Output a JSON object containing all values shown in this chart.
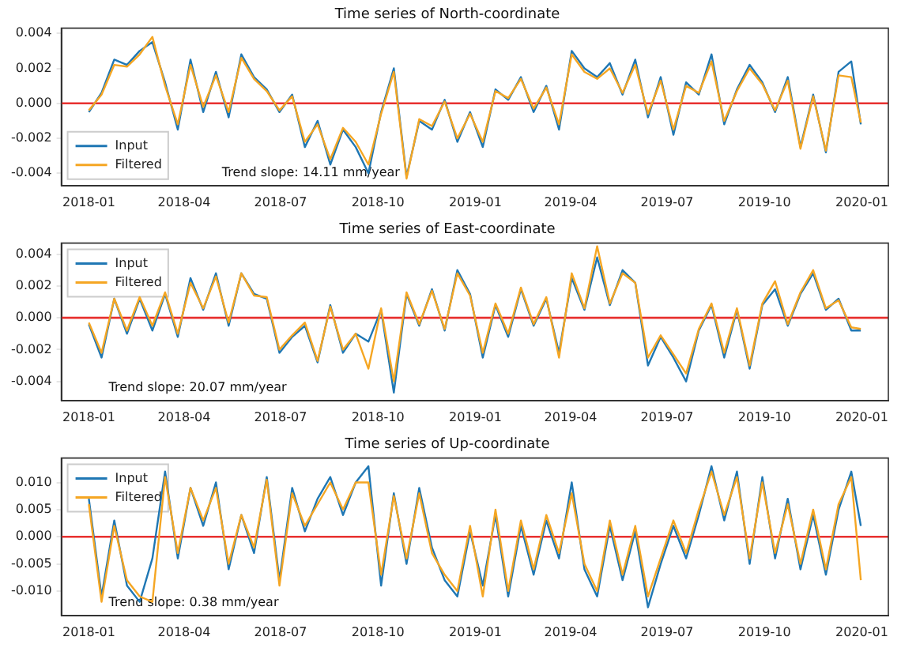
{
  "chart_data": [
    {
      "type": "line",
      "title": "Time series of North-coordinate",
      "legend": "bottom left",
      "grid": false,
      "marker": "none",
      "line_style": "solid",
      "x": [
        "2018-01-01",
        "2018-01-13",
        "2018-01-25",
        "2018-02-06",
        "2018-02-18",
        "2018-03-02",
        "2018-03-14",
        "2018-03-26",
        "2018-04-07",
        "2018-04-19",
        "2018-05-01",
        "2018-05-13",
        "2018-05-25",
        "2018-06-06",
        "2018-06-18",
        "2018-06-30",
        "2018-07-12",
        "2018-07-24",
        "2018-08-05",
        "2018-08-17",
        "2018-08-29",
        "2018-09-10",
        "2018-09-22",
        "2018-10-04",
        "2018-10-16",
        "2018-10-28",
        "2018-11-09",
        "2018-11-21",
        "2018-12-03",
        "2018-12-15",
        "2018-12-27",
        "2019-01-08",
        "2019-01-20",
        "2019-02-01",
        "2019-02-13",
        "2019-02-25",
        "2019-03-09",
        "2019-03-21",
        "2019-04-02",
        "2019-04-14",
        "2019-04-26",
        "2019-05-08",
        "2019-05-20",
        "2019-06-01",
        "2019-06-13",
        "2019-06-25",
        "2019-07-07",
        "2019-07-19",
        "2019-07-31",
        "2019-08-12",
        "2019-08-24",
        "2019-09-05",
        "2019-09-17",
        "2019-09-29",
        "2019-10-11",
        "2019-10-23",
        "2019-11-04",
        "2019-11-16",
        "2019-11-28",
        "2019-12-10",
        "2019-12-22",
        "2019-12-31"
      ],
      "series": [
        {
          "name": "Input",
          "color": "#1f77b4",
          "values": [
            -0.0005,
            0.0006,
            0.0025,
            0.0022,
            0.003,
            0.0035,
            0.0012,
            -0.0015,
            0.0025,
            -0.0005,
            0.0018,
            -0.0008,
            0.0028,
            0.0015,
            0.0008,
            -0.0005,
            0.0005,
            -0.0025,
            -0.001,
            -0.0035,
            -0.0015,
            -0.0025,
            -0.004,
            -0.0005,
            0.002,
            -0.0042,
            -0.001,
            -0.0015,
            0.0002,
            -0.0022,
            -0.0005,
            -0.0025,
            0.0008,
            0.0002,
            0.0015,
            -0.0005,
            0.001,
            -0.0015,
            0.003,
            0.002,
            0.0015,
            0.0023,
            0.0005,
            0.0025,
            -0.0008,
            0.0015,
            -0.0018,
            0.0012,
            0.0005,
            0.0028,
            -0.0012,
            0.0008,
            0.0022,
            0.0012,
            -0.0005,
            0.0015,
            -0.0025,
            0.0005,
            -0.0028,
            0.0018,
            0.0024,
            -0.0012
          ]
        },
        {
          "name": "Filtered",
          "color": "#f5a623",
          "values": [
            -0.0004,
            0.0005,
            0.0022,
            0.0021,
            0.0028,
            0.0038,
            0.001,
            -0.0012,
            0.0022,
            -0.0002,
            0.0016,
            -0.0005,
            0.0026,
            0.0014,
            0.0007,
            -0.0004,
            0.0004,
            -0.0022,
            -0.0012,
            -0.0032,
            -0.0014,
            -0.0022,
            -0.0035,
            -0.0006,
            0.0018,
            -0.0043,
            -0.0009,
            -0.0013,
            0.0001,
            -0.002,
            -0.0006,
            -0.0022,
            0.0007,
            0.0003,
            0.0014,
            -0.0003,
            0.0009,
            -0.0012,
            0.0028,
            0.0018,
            0.0014,
            0.002,
            0.0006,
            0.0022,
            -0.0006,
            0.0013,
            -0.0015,
            0.001,
            0.0006,
            0.0024,
            -0.001,
            0.0007,
            0.002,
            0.0011,
            -0.0004,
            0.0013,
            -0.0026,
            0.0004,
            -0.0027,
            0.0016,
            0.0015,
            -0.0011
          ]
        }
      ],
      "xlim": [
        "2017-12-06",
        "2020-01-26"
      ],
      "xticks": [
        "2018-01",
        "2018-04",
        "2018-07",
        "2018-10",
        "2019-01",
        "2019-04",
        "2019-07",
        "2019-10",
        "2020-01"
      ],
      "ylim": [
        -0.0047,
        0.0043
      ],
      "yticks": [
        {
          "value": -0.004,
          "label": "-0.004"
        },
        {
          "value": -0.002,
          "label": "-0.002"
        },
        {
          "value": 0,
          "label": "0.000"
        },
        {
          "value": 0.002,
          "label": "0.002"
        },
        {
          "value": 0.004,
          "label": "0.004"
        }
      ],
      "ref_lines": [
        {
          "axis": "y",
          "value": 0,
          "color": "#e8312f"
        }
      ],
      "annotations": [
        "Trend slope: 14.11 mm/year"
      ]
    },
    {
      "type": "line",
      "title": "Time series of East-coordinate",
      "legend": "top left",
      "grid": false,
      "marker": "none",
      "line_style": "solid",
      "x": [
        "2018-01-01",
        "2018-01-13",
        "2018-01-25",
        "2018-02-06",
        "2018-02-18",
        "2018-03-02",
        "2018-03-14",
        "2018-03-26",
        "2018-04-07",
        "2018-04-19",
        "2018-05-01",
        "2018-05-13",
        "2018-05-25",
        "2018-06-06",
        "2018-06-18",
        "2018-06-30",
        "2018-07-12",
        "2018-07-24",
        "2018-08-05",
        "2018-08-17",
        "2018-08-29",
        "2018-09-10",
        "2018-09-22",
        "2018-10-04",
        "2018-10-16",
        "2018-10-28",
        "2018-11-09",
        "2018-11-21",
        "2018-12-03",
        "2018-12-15",
        "2018-12-27",
        "2019-01-08",
        "2019-01-20",
        "2019-02-01",
        "2019-02-13",
        "2019-02-25",
        "2019-03-09",
        "2019-03-21",
        "2019-04-02",
        "2019-04-14",
        "2019-04-26",
        "2019-05-08",
        "2019-05-20",
        "2019-06-01",
        "2019-06-13",
        "2019-06-25",
        "2019-07-07",
        "2019-07-19",
        "2019-07-31",
        "2019-08-12",
        "2019-08-24",
        "2019-09-05",
        "2019-09-17",
        "2019-09-29",
        "2019-10-11",
        "2019-10-23",
        "2019-11-04",
        "2019-11-16",
        "2019-11-28",
        "2019-12-10",
        "2019-12-22",
        "2019-12-31"
      ],
      "series": [
        {
          "name": "Input",
          "color": "#1f77b4",
          "values": [
            -0.0004,
            -0.0025,
            0.0012,
            -0.001,
            0.0012,
            -0.0008,
            0.0015,
            -0.0012,
            0.0025,
            0.0005,
            0.0028,
            -0.0005,
            0.0028,
            0.0015,
            0.0012,
            -0.0022,
            -0.0012,
            -0.0005,
            -0.0028,
            0.0008,
            -0.0022,
            -0.001,
            -0.0015,
            0.0005,
            -0.0047,
            0.0015,
            -0.0005,
            0.0018,
            -0.0008,
            0.003,
            0.0015,
            -0.0025,
            0.0008,
            -0.0012,
            0.0018,
            -0.0005,
            0.0012,
            -0.0022,
            0.0025,
            0.0005,
            0.0038,
            0.0008,
            0.003,
            0.0022,
            -0.003,
            -0.0012,
            -0.0025,
            -0.004,
            -0.0008,
            0.0008,
            -0.0025,
            0.0005,
            -0.0032,
            0.0008,
            0.0018,
            -0.0005,
            0.0015,
            0.0028,
            0.0005,
            0.0012,
            -0.0008,
            -0.0008
          ]
        },
        {
          "name": "Filtered",
          "color": "#f5a623",
          "values": [
            -0.0003,
            -0.0022,
            0.0012,
            -0.0008,
            0.0013,
            -0.0005,
            0.0016,
            -0.001,
            0.0022,
            0.0006,
            0.0026,
            -0.0003,
            0.0028,
            0.0014,
            0.0013,
            -0.002,
            -0.0011,
            -0.0003,
            -0.0027,
            0.0007,
            -0.002,
            -0.001,
            -0.0032,
            0.0006,
            -0.004,
            0.0016,
            -0.0004,
            0.0017,
            -0.0007,
            0.0028,
            0.0014,
            -0.0022,
            0.0009,
            -0.001,
            0.0019,
            -0.0004,
            0.0013,
            -0.0025,
            0.0028,
            0.0006,
            0.0045,
            0.0009,
            0.0028,
            0.0022,
            -0.0025,
            -0.0011,
            -0.0023,
            -0.0035,
            -0.0007,
            0.0009,
            -0.0022,
            0.0006,
            -0.003,
            0.0009,
            0.0023,
            -0.0004,
            0.0016,
            0.003,
            0.0006,
            0.0011,
            -0.0006,
            -0.0007
          ]
        }
      ],
      "xlim": [
        "2017-12-06",
        "2020-01-26"
      ],
      "xticks": [
        "2018-01",
        "2018-04",
        "2018-07",
        "2018-10",
        "2019-01",
        "2019-04",
        "2019-07",
        "2019-10",
        "2020-01"
      ],
      "ylim": [
        -0.0052,
        0.0047
      ],
      "yticks": [
        {
          "value": -0.004,
          "label": "-0.004"
        },
        {
          "value": -0.002,
          "label": "-0.002"
        },
        {
          "value": 0,
          "label": "0.000"
        },
        {
          "value": 0.002,
          "label": "0.002"
        },
        {
          "value": 0.004,
          "label": "0.004"
        }
      ],
      "ref_lines": [
        {
          "axis": "y",
          "value": 0,
          "color": "#e8312f"
        }
      ],
      "annotations": [
        "Trend slope: 20.07 mm/year"
      ]
    },
    {
      "type": "line",
      "title": "Time series of Up-coordinate",
      "legend": "top left",
      "grid": false,
      "marker": "none",
      "line_style": "solid",
      "x": [
        "2018-01-01",
        "2018-01-13",
        "2018-01-25",
        "2018-02-06",
        "2018-02-18",
        "2018-03-02",
        "2018-03-14",
        "2018-03-26",
        "2018-04-07",
        "2018-04-19",
        "2018-05-01",
        "2018-05-13",
        "2018-05-25",
        "2018-06-06",
        "2018-06-18",
        "2018-06-30",
        "2018-07-12",
        "2018-07-24",
        "2018-08-05",
        "2018-08-17",
        "2018-08-29",
        "2018-09-10",
        "2018-09-22",
        "2018-10-04",
        "2018-10-16",
        "2018-10-28",
        "2018-11-09",
        "2018-11-21",
        "2018-12-03",
        "2018-12-15",
        "2018-12-27",
        "2019-01-08",
        "2019-01-20",
        "2019-02-01",
        "2019-02-13",
        "2019-02-25",
        "2019-03-09",
        "2019-03-21",
        "2019-04-02",
        "2019-04-14",
        "2019-04-26",
        "2019-05-08",
        "2019-05-20",
        "2019-06-01",
        "2019-06-13",
        "2019-06-25",
        "2019-07-07",
        "2019-07-19",
        "2019-07-31",
        "2019-08-12",
        "2019-08-24",
        "2019-09-05",
        "2019-09-17",
        "2019-09-29",
        "2019-10-11",
        "2019-10-23",
        "2019-11-04",
        "2019-11-16",
        "2019-11-28",
        "2019-12-10",
        "2019-12-22",
        "2019-12-31"
      ],
      "series": [
        {
          "name": "Input",
          "color": "#1f77b4",
          "values": [
            0.007,
            -0.011,
            0.003,
            -0.009,
            -0.012,
            -0.004,
            0.012,
            -0.004,
            0.009,
            0.002,
            0.01,
            -0.006,
            0.004,
            -0.003,
            0.011,
            -0.008,
            0.009,
            0.001,
            0.007,
            0.011,
            0.004,
            0.01,
            0.013,
            -0.009,
            0.008,
            -0.005,
            0.009,
            -0.002,
            -0.008,
            -0.011,
            0.001,
            -0.009,
            0.004,
            -0.011,
            0.002,
            -0.007,
            0.003,
            -0.004,
            0.01,
            -0.006,
            -0.011,
            0.002,
            -0.008,
            0.001,
            -0.013,
            -0.005,
            0.002,
            -0.004,
            0.004,
            0.013,
            0.003,
            0.012,
            -0.005,
            0.011,
            -0.004,
            0.007,
            -0.006,
            0.004,
            -0.007,
            0.005,
            0.012,
            0.002
          ]
        },
        {
          "name": "Filtered",
          "color": "#f5a623",
          "values": [
            0.006,
            -0.012,
            0.002,
            -0.008,
            -0.011,
            -0.012,
            0.011,
            -0.003,
            0.009,
            0.003,
            0.009,
            -0.005,
            0.004,
            -0.002,
            0.0105,
            -0.009,
            0.008,
            0.002,
            0.006,
            0.01,
            0.005,
            0.01,
            0.01,
            -0.007,
            0.0075,
            -0.004,
            0.008,
            -0.003,
            -0.007,
            -0.01,
            0.002,
            -0.011,
            0.005,
            -0.01,
            0.003,
            -0.006,
            0.004,
            -0.003,
            0.008,
            -0.005,
            -0.01,
            0.003,
            -0.007,
            0.002,
            -0.011,
            -0.004,
            0.003,
            -0.003,
            0.005,
            0.012,
            0.004,
            0.011,
            -0.004,
            0.01,
            -0.003,
            0.006,
            -0.005,
            0.005,
            -0.006,
            0.006,
            0.011,
            -0.008
          ]
        }
      ],
      "xlim": [
        "2017-12-06",
        "2020-01-26"
      ],
      "xticks": [
        "2018-01",
        "2018-04",
        "2018-07",
        "2018-10",
        "2019-01",
        "2019-04",
        "2019-07",
        "2019-10",
        "2020-01"
      ],
      "ylim": [
        -0.0145,
        0.0145
      ],
      "yticks": [
        {
          "value": -0.01,
          "label": "-0.010"
        },
        {
          "value": -0.005,
          "label": "-0.005"
        },
        {
          "value": 0,
          "label": "0.000"
        },
        {
          "value": 0.005,
          "label": "0.005"
        },
        {
          "value": 0.01,
          "label": "0.010"
        }
      ],
      "ref_lines": [
        {
          "axis": "y",
          "value": 0,
          "color": "#e8312f"
        }
      ],
      "annotations": [
        "Trend slope: 0.38 mm/year"
      ]
    }
  ]
}
